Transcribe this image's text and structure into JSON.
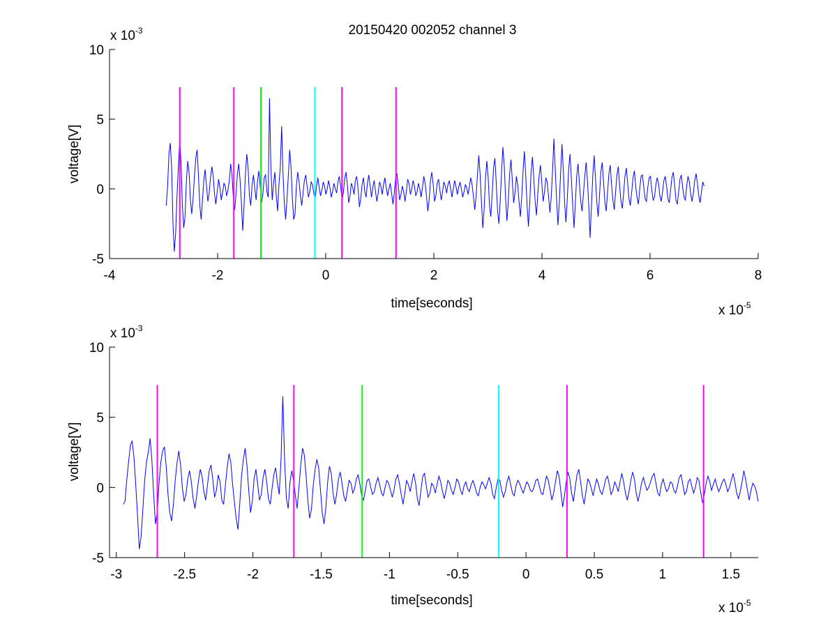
{
  "figure_title": "20150420 002052 channel 3",
  "colors": {
    "trace": "#0000ff",
    "magenta": "#ff00ff",
    "green": "#00ff00",
    "cyan": "#00ffff",
    "axes": "#000000"
  },
  "chart_data": [
    {
      "type": "line",
      "title": "20150420 002052 channel 3",
      "xlabel": "time[seconds]",
      "ylabel": "voltage[V]",
      "x_multiplier_label": "x 10",
      "x_multiplier_exp": "-5",
      "y_multiplier_label": "x 10",
      "y_multiplier_exp": "-3",
      "xlim": [
        -4,
        8
      ],
      "ylim": [
        -5,
        10
      ],
      "xticks": [
        -4,
        -2,
        0,
        2,
        4,
        6,
        8
      ],
      "xtick_labels": [
        "-4",
        "-2",
        "0",
        "2",
        "4",
        "6",
        "8"
      ],
      "yticks": [
        -5,
        0,
        5,
        10
      ],
      "ytick_labels": [
        "-5",
        "0",
        "5",
        "10"
      ],
      "grid": false,
      "series": [
        {
          "x_range": [
            -2.95,
            7.0
          ],
          "y": [
            -1.2,
            0.2,
            2.5,
            3.3,
            1.5,
            -2.5,
            -4.5,
            -3.2,
            -0.5,
            1.6,
            3.4,
            2.0,
            -1.2,
            -2.8,
            -2.0,
            0.5,
            2.0,
            1.2,
            -0.8,
            -1.8,
            -0.7,
            0.9,
            2.2,
            2.8,
            1.0,
            -1.2,
            -2.2,
            -0.8,
            0.6,
            1.4,
            0.2,
            -0.9,
            -0.3,
            0.8,
            1.6,
            0.9,
            -0.4,
            -1.1,
            -0.2,
            0.7,
            0.1,
            -0.8,
            -0.3,
            0.4,
            0.2,
            -0.5,
            -0.1,
            0.6,
            1.8,
            1.0,
            -0.6,
            -1.5,
            -0.4,
            1.0,
            1.8,
            0.7,
            -1.0,
            -3.0,
            -1.2,
            1.0,
            2.5,
            1.5,
            -0.5,
            -1.2,
            0.3,
            1.0,
            0.0,
            -0.8,
            0.5,
            1.3,
            0.2,
            -1.0,
            -0.4,
            0.8,
            1.0,
            -0.2,
            -0.6,
            6.5,
            1.5,
            -0.8,
            0.4,
            1.2,
            -0.5,
            -1.6,
            0.3,
            1.5,
            4.5,
            1.2,
            -1.0,
            -2.2,
            -0.8,
            1.0,
            2.8,
            1.6,
            -0.6,
            -2.2,
            -1.8,
            0.2,
            1.2,
            0.5,
            -0.5,
            -1.2,
            -0.3,
            0.6,
            1.0,
            0.2,
            -0.6,
            -0.2,
            0.5,
            0.3,
            -0.3,
            -0.8,
            0.2,
            0.8,
            0.1,
            -0.5,
            -0.1,
            0.5,
            0.2,
            -0.4,
            0.0,
            0.6,
            0.1,
            -0.6,
            -0.2,
            0.4,
            0.0,
            -0.3,
            0.5,
            0.9,
            0.2,
            -0.8,
            -0.3,
            0.7,
            1.2,
            0.3,
            -1.0,
            -0.5,
            0.4,
            0.1,
            -0.4,
            0.6,
            0.9,
            0.0,
            -1.3,
            -0.7,
            0.3,
            0.8,
            -0.2,
            -0.6,
            0.4,
            1.0,
            0.2,
            -0.6,
            0.1,
            0.6,
            -0.2,
            -0.9,
            -0.3,
            0.5,
            0.2,
            -0.4,
            0.3,
            0.8,
            0.1,
            -0.5,
            0.0,
            0.4,
            -0.3,
            -1.1,
            -0.3,
            0.8,
            1.1,
            0.2,
            -0.8,
            -0.4,
            0.2,
            -0.2,
            -0.9,
            -0.2,
            0.7,
            0.4,
            -0.4,
            0.0,
            0.6,
            0.2,
            -0.5,
            -0.2,
            0.4,
            0.0,
            -0.6,
            0.1,
            0.9,
            0.4,
            -0.5,
            -1.6,
            -0.8,
            0.6,
            1.2,
            0.3,
            -0.9,
            -0.5,
            0.4,
            0.7,
            -0.1,
            -0.8,
            -0.2,
            0.5,
            0.2,
            -0.3,
            0.3,
            0.6,
            0.0,
            -0.6,
            0.0,
            0.6,
            0.2,
            -0.4,
            0.1,
            0.5,
            0.0,
            -0.6,
            -0.2,
            0.3,
            0.1,
            -0.4,
            0.2,
            0.8,
            0.3,
            -0.5,
            -1.5,
            -0.5,
            1.0,
            2.4,
            1.0,
            -1.0,
            -2.8,
            -1.5,
            0.8,
            2.0,
            0.8,
            -1.2,
            -2.0,
            -0.3,
            1.5,
            2.2,
            0.5,
            -1.6,
            -2.5,
            -0.8,
            1.2,
            3.0,
            1.6,
            -0.7,
            -2.3,
            -0.9,
            1.1,
            2.1,
            0.6,
            -1.0,
            -0.3,
            0.9,
            0.3,
            -0.9,
            -2.0,
            -0.6,
            1.3,
            2.7,
            1.0,
            -1.2,
            -2.7,
            -1.0,
            1.2,
            2.3,
            0.7,
            -0.9,
            -1.9,
            -0.4,
            1.0,
            1.7,
            0.4,
            -0.9,
            -0.2,
            0.8,
            0.5,
            -0.5,
            -1.7,
            -0.6,
            1.3,
            3.6,
            1.5,
            -0.8,
            -2.6,
            -1.1,
            1.1,
            3.2,
            1.4,
            -1.0,
            -2.4,
            -0.6,
            1.4,
            2.5,
            0.8,
            -1.1,
            -2.8,
            -1.0,
            0.9,
            1.8,
            0.4,
            -0.9,
            -1.6,
            -0.4,
            0.9,
            1.9,
            0.6,
            -1.2,
            -3.5,
            -1.2,
            1.0,
            2.4,
            0.8,
            -1.0,
            -2.0,
            -0.5,
            1.2,
            1.9,
            0.5,
            -0.9,
            -1.6,
            -0.3,
            1.1,
            1.7,
            0.3,
            -0.8,
            -1.5,
            -0.2,
            1.0,
            1.6,
            0.2,
            -0.9,
            -1.4,
            -0.3,
            0.9,
            1.5,
            0.4,
            -0.7,
            -1.2,
            -0.2,
            0.8,
            1.3,
            0.2,
            -0.6,
            -1.1,
            0.0,
            0.9,
            1.0,
            0.1,
            -0.7,
            -0.9,
            0.1,
            0.8,
            0.9,
            -0.1,
            -0.8,
            -0.6,
            0.3,
            0.8,
            0.4,
            -0.5,
            -0.9,
            -0.2,
            0.6,
            0.9,
            0.2,
            -0.7,
            -1.0,
            -0.1,
            0.8,
            1.2,
            0.3,
            -0.8,
            -1.1,
            -0.2,
            0.7,
            1.0,
            0.1,
            -0.6,
            -0.8,
            0.2,
            0.9,
            0.5,
            -0.4,
            -0.9,
            -0.3,
            0.6,
            1.1,
            0.4,
            -0.5,
            -1.0,
            -0.2,
            0.5,
            0.2
          ]
        }
      ],
      "vlines": [
        {
          "x": -2.7,
          "color": "magenta"
        },
        {
          "x": -1.7,
          "color": "magenta"
        },
        {
          "x": -1.2,
          "color": "green"
        },
        {
          "x": -0.2,
          "color": "cyan"
        },
        {
          "x": 0.3,
          "color": "magenta"
        },
        {
          "x": 1.3,
          "color": "magenta"
        }
      ],
      "vline_top": 7.3
    },
    {
      "type": "line",
      "title": "",
      "xlabel": "time[seconds]",
      "ylabel": "voltage[V]",
      "x_multiplier_label": "x 10",
      "x_multiplier_exp": "-5",
      "y_multiplier_label": "x 10",
      "y_multiplier_exp": "-3",
      "xlim": [
        -3.05,
        1.7
      ],
      "ylim": [
        -5,
        10
      ],
      "xticks": [
        -3,
        -2.5,
        -2,
        -1.5,
        -1,
        -0.5,
        0,
        0.5,
        1,
        1.5
      ],
      "xtick_labels": [
        "-3",
        "-2.5",
        "-2",
        "-1.5",
        "-1",
        "-0.5",
        "0",
        "0.5",
        "1",
        "1.5"
      ],
      "yticks": [
        -5,
        0,
        5,
        10
      ],
      "ytick_labels": [
        "-5",
        "0",
        "5",
        "10"
      ],
      "grid": false,
      "series": [
        {
          "x_range": [
            -2.95,
            1.7
          ],
          "y": [
            -1.2,
            -1.0,
            0.5,
            1.8,
            3.0,
            3.3,
            2.2,
            0.2,
            -2.0,
            -4.4,
            -3.5,
            -1.5,
            0.5,
            1.8,
            2.5,
            3.5,
            2.0,
            -0.5,
            -2.6,
            -1.8,
            0.3,
            1.8,
            2.6,
            2.9,
            1.5,
            -0.5,
            -1.8,
            -2.4,
            -1.2,
            0.5,
            1.7,
            2.6,
            1.6,
            0.0,
            -1.0,
            -0.5,
            0.6,
            1.2,
            0.4,
            -0.8,
            -1.5,
            -0.6,
            0.5,
            1.3,
            0.8,
            -0.3,
            -0.9,
            0.2,
            1.2,
            1.6,
            0.5,
            -0.7,
            -0.2,
            0.9,
            0.4,
            -0.9,
            -1.2,
            0.2,
            1.4,
            2.4,
            1.8,
            0.2,
            -1.0,
            -2.2,
            -3.0,
            -1.2,
            0.8,
            2.0,
            2.8,
            1.6,
            -0.2,
            -1.8,
            -1.0,
            0.6,
            1.3,
            0.2,
            -0.9,
            -0.5,
            0.7,
            1.3,
            0.4,
            -0.8,
            -1.2,
            -0.1,
            0.9,
            1.4,
            0.3,
            -0.5,
            2.0,
            6.5,
            2.0,
            -0.8,
            -1.5,
            0.4,
            1.2,
            0.5,
            -0.6,
            -1.5,
            0.0,
            1.6,
            2.8,
            2.3,
            0.8,
            -1.0,
            -2.2,
            -1.5,
            0.2,
            1.3,
            2.0,
            1.4,
            -0.2,
            -1.8,
            -2.6,
            -1.4,
            0.4,
            1.5,
            1.0,
            -0.4,
            -1.2,
            -0.5,
            0.6,
            1.1,
            0.3,
            -0.6,
            -1.0,
            -0.2,
            0.5,
            0.3,
            -0.4,
            -0.1,
            0.6,
            0.9,
            0.2,
            -0.6,
            -0.9,
            -0.2,
            0.5,
            0.6,
            0.0,
            -0.5,
            -0.3,
            0.3,
            0.7,
            0.2,
            -0.4,
            -0.6,
            0.0,
            0.5,
            0.3,
            -0.2,
            -0.7,
            -0.2,
            0.6,
            0.9,
            0.3,
            -0.5,
            -1.2,
            -0.4,
            0.5,
            0.2,
            -0.3,
            0.4,
            1.0,
            0.3,
            -0.8,
            -1.3,
            -0.2,
            0.8,
            1.0,
            0.1,
            -0.7,
            -0.4,
            0.3,
            0.1,
            -0.4,
            0.2,
            0.8,
            0.4,
            -0.3,
            -0.8,
            -0.2,
            0.5,
            0.3,
            -0.2,
            -0.5,
            0.0,
            0.6,
            0.4,
            -0.2,
            -0.5,
            0.1,
            0.4,
            -0.1,
            -0.3,
            0.2,
            0.5,
            0.1,
            -0.4,
            -0.6,
            0.0,
            0.4,
            0.2,
            -0.1,
            0.3,
            0.7,
            0.3,
            -0.5,
            -0.8,
            0.0,
            0.6,
            0.5,
            -0.2,
            -0.7,
            -0.3,
            0.4,
            0.8,
            0.2,
            -0.4,
            -0.6,
            0.1,
            0.5,
            0.3,
            -0.1,
            -0.4,
            0.0,
            0.4,
            0.2,
            -0.2,
            -0.3,
            0.0,
            0.5,
            0.6,
            0.1,
            -0.4,
            -0.5,
            0.2,
            0.8,
            0.5,
            -0.2,
            -0.9,
            -0.4,
            0.4,
            1.2,
            0.8,
            -0.3,
            -1.4,
            -0.6,
            0.4,
            1.1,
            0.6,
            -0.4,
            -1.0,
            0.0,
            0.9,
            1.3,
            0.4,
            -0.6,
            -1.2,
            -0.3,
            0.6,
            0.4,
            -0.1,
            -0.6,
            0.1,
            0.6,
            0.2,
            -0.3,
            -0.5,
            0.0,
            0.6,
            0.8,
            0.2,
            -0.5,
            -0.2,
            0.4,
            0.1,
            -0.3,
            0.4,
            1.0,
            0.4,
            -0.4,
            -0.9,
            -0.3,
            0.5,
            1.1,
            0.6,
            -0.4,
            -1.0,
            -0.4,
            0.3,
            0.7,
            0.2,
            -0.2,
            0.0,
            0.4,
            0.8,
            1.0,
            0.3,
            -0.4,
            -0.6,
            0.2,
            0.6,
            0.1,
            -0.3,
            -0.1,
            0.4,
            0.3,
            -0.2,
            -0.4,
            0.1,
            0.7,
            0.9,
            0.2,
            -0.5,
            -0.3,
            0.4,
            0.6,
            0.1,
            -0.4,
            0.0,
            0.7,
            0.5,
            -0.4,
            -1.1,
            -0.5,
            0.3,
            0.8,
            0.4,
            -0.2,
            0.2,
            0.6,
            0.1,
            -0.3,
            0.0,
            0.4,
            0.6,
            0.2,
            -0.3,
            0.0,
            0.5,
            1.0,
            0.4,
            -0.4,
            -0.8,
            -0.3,
            0.4,
            1.2,
            0.6,
            -0.2,
            -0.9,
            -0.2,
            0.3,
            0.1,
            -0.3,
            -1.0
          ]
        }
      ],
      "vlines": [
        {
          "x": -2.7,
          "color": "magenta"
        },
        {
          "x": -1.7,
          "color": "magenta"
        },
        {
          "x": -1.2,
          "color": "green"
        },
        {
          "x": -0.2,
          "color": "cyan"
        },
        {
          "x": 0.3,
          "color": "magenta"
        },
        {
          "x": 1.3,
          "color": "magenta"
        }
      ],
      "vline_top": 7.3
    }
  ]
}
